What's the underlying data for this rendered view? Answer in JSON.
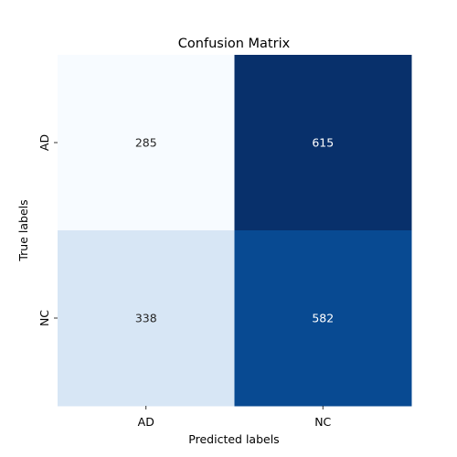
{
  "chart_data": {
    "type": "heatmap",
    "title": "Confusion Matrix",
    "xlabel": "Predicted labels",
    "ylabel": "True labels",
    "x_categories": [
      "AD",
      "NC"
    ],
    "y_categories": [
      "AD",
      "NC"
    ],
    "values": [
      [
        285,
        615
      ],
      [
        338,
        582
      ]
    ],
    "colormap": "Blues",
    "value_range": [
      285,
      615
    ],
    "colorbar": false
  }
}
